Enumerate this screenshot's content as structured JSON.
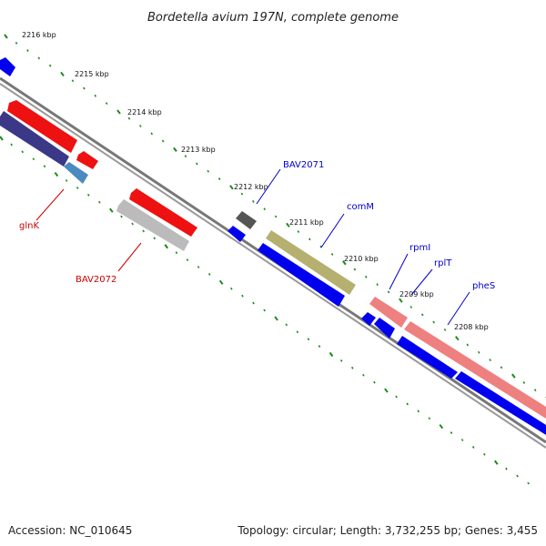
{
  "title": "Bordetella avium 197N, complete genome",
  "footer": {
    "accession": "Accession: NC_010645",
    "summary": "Topology: circular; Length: 3,732,255 bp; Genes: 3,455"
  },
  "ticks": [
    "2216 kbp",
    "2215 kbp",
    "2214 kbp",
    "2213 kbp",
    "2212 kbp",
    "2211 kbp",
    "2210 kbp",
    "2209 kbp",
    "2208 kbp"
  ],
  "gene_labels": [
    {
      "text": "glnK",
      "color": "#cc0000"
    },
    {
      "text": "BAV2072",
      "color": "#cc0000"
    },
    {
      "text": "BAV2071",
      "color": "#0000cc"
    },
    {
      "text": "comM",
      "color": "#0000cc"
    },
    {
      "text": "rpmI",
      "color": "#0000cc"
    },
    {
      "text": "rplT",
      "color": "#0000cc"
    },
    {
      "text": "pheS",
      "color": "#0000cc"
    }
  ],
  "colors": {
    "backbone": "#777777",
    "tick_dots": "#1a8a1a",
    "red_gene": "#ee1111",
    "blue_gene": "#0000ee",
    "navy_gene": "#3b3888",
    "steel_gene": "#4a8ac0",
    "grey_gene": "#bbbbbb",
    "darkgrey_gene": "#555555",
    "olive_gene": "#b5b070",
    "pink_gene": "#ee8080"
  }
}
